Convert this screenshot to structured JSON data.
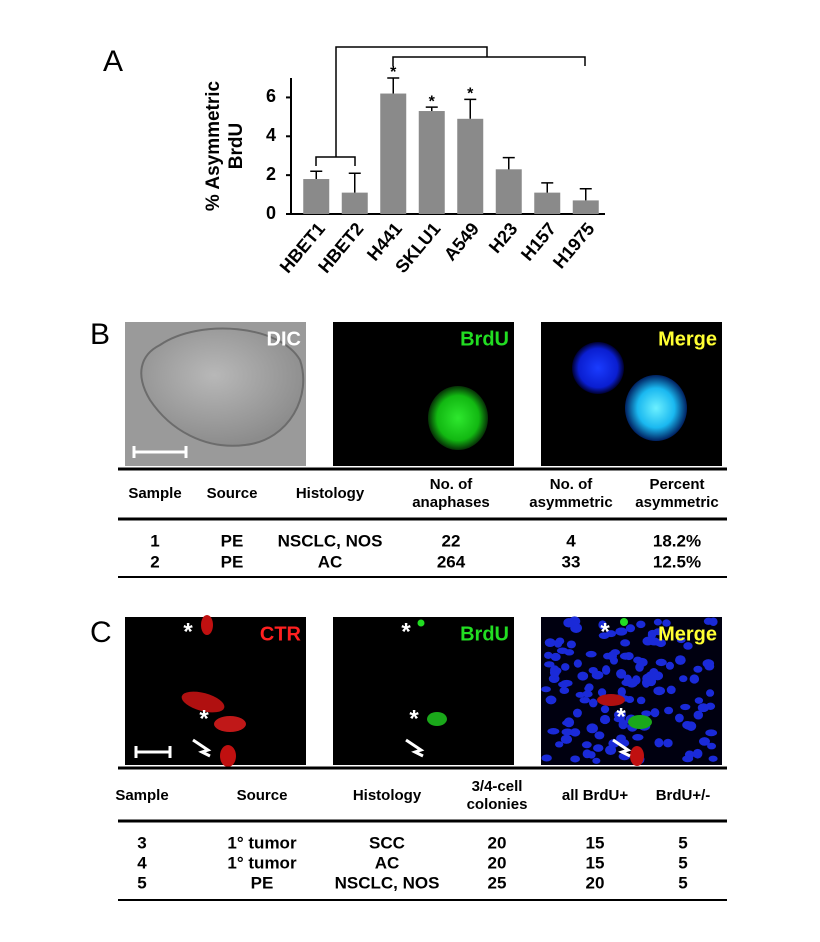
{
  "chart_data": {
    "type": "bar",
    "panel_label": "A",
    "ylabel": [
      "% Asymmetric",
      "BrdU"
    ],
    "categories": [
      "HBET1",
      "HBET2",
      "H441",
      "SKLU1",
      "A549",
      "H23",
      "H157",
      "H1975"
    ],
    "values": [
      1.8,
      1.1,
      6.2,
      5.3,
      4.9,
      2.3,
      1.1,
      0.7
    ],
    "errors": [
      0.4,
      1.0,
      0.8,
      0.2,
      1.0,
      0.6,
      0.5,
      0.6
    ],
    "color": "#8a8a8a",
    "ylim": [
      0,
      7
    ],
    "yticks": [
      0,
      2,
      4,
      6
    ],
    "grid": false,
    "annotations": [
      {
        "text": "*",
        "category": "H441"
      },
      {
        "text": "*",
        "category": "SKLU1"
      },
      {
        "text": "*",
        "category": "A549"
      }
    ]
  },
  "panel_b": {
    "label": "B",
    "images": [
      {
        "label": "DIC"
      },
      {
        "label": "BrdU"
      },
      {
        "label": "Merge"
      }
    ],
    "table": {
      "header": [
        [
          "Sample"
        ],
        [
          "Source"
        ],
        [
          "Histology"
        ],
        [
          "No. of",
          "anaphases"
        ],
        [
          "No. of",
          "asymmetric"
        ],
        [
          "Percent",
          "asymmetric"
        ]
      ],
      "rows": [
        [
          "1",
          "PE",
          "NSCLC, NOS",
          "22",
          "4",
          "18.2%"
        ],
        [
          "2",
          "PE",
          "AC",
          "264",
          "33",
          "12.5%"
        ]
      ]
    }
  },
  "panel_c": {
    "label": "C",
    "images": [
      {
        "label": "CTR",
        "markers": [
          "*",
          "*"
        ]
      },
      {
        "label": "BrdU",
        "markers": [
          "*",
          "*"
        ]
      },
      {
        "label": "Merge",
        "markers": [
          "*",
          "*"
        ]
      }
    ],
    "table": {
      "header": [
        [
          "Sample"
        ],
        [
          "Source"
        ],
        [
          "Histology"
        ],
        [
          "3/4-cell",
          "colonies"
        ],
        [
          "all BrdU+"
        ],
        [
          "BrdU+/-"
        ]
      ],
      "rows": [
        [
          "3",
          "1° tumor",
          "SCC",
          "20",
          "15",
          "5"
        ],
        [
          "4",
          "1° tumor",
          "AC",
          "20",
          "15",
          "5"
        ],
        [
          "5",
          "PE",
          "NSCLC, NOS",
          "25",
          "20",
          "5"
        ]
      ]
    }
  }
}
